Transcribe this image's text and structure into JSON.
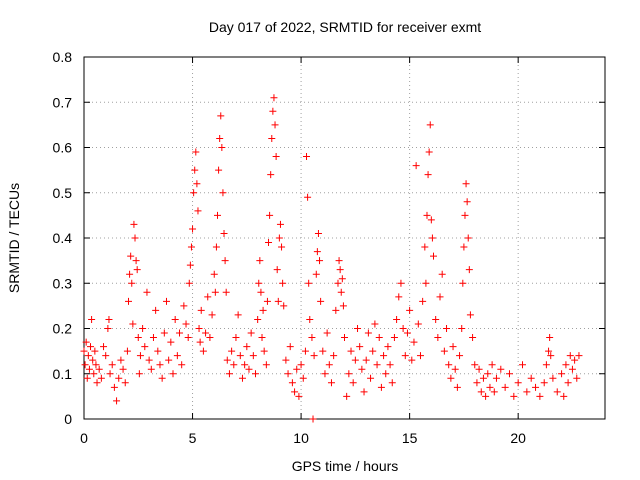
{
  "chart_data": {
    "type": "scatter",
    "title": "Day 017 of 2022, SRMTID for receiver exmt",
    "xlabel": "GPS time / hours",
    "ylabel": "SRMTID / TECUs",
    "xlim": [
      0,
      24
    ],
    "ylim": [
      0,
      0.8
    ],
    "xticks": [
      0,
      5,
      10,
      15,
      20
    ],
    "xtick_labels": [
      "0",
      "5",
      "10",
      "15",
      "20"
    ],
    "yticks": [
      0,
      0.1,
      0.2,
      0.3,
      0.4,
      0.5,
      0.6,
      0.7,
      0.8
    ],
    "ytick_labels": [
      "0",
      "0.1",
      "0.2",
      "0.3",
      "0.4",
      "0.5",
      "0.6",
      "0.7",
      "0.8"
    ],
    "grid": true,
    "marker": "+",
    "series_color": "#ff0000",
    "series": [
      {
        "name": "SRMTID",
        "points": [
          [
            0.0,
            0.15
          ],
          [
            0.05,
            0.12
          ],
          [
            0.1,
            0.17
          ],
          [
            0.15,
            0.09
          ],
          [
            0.2,
            0.14
          ],
          [
            0.25,
            0.11
          ],
          [
            0.3,
            0.16
          ],
          [
            0.35,
            0.22
          ],
          [
            0.4,
            0.13
          ],
          [
            0.45,
            0.1
          ],
          [
            0.5,
            0.15
          ],
          [
            0.55,
            0.12
          ],
          [
            0.6,
            0.08
          ],
          [
            0.7,
            0.11
          ],
          [
            0.8,
            0.09
          ],
          [
            0.9,
            0.16
          ],
          [
            1.0,
            0.14
          ],
          [
            1.1,
            0.2
          ],
          [
            1.15,
            0.22
          ],
          [
            1.2,
            0.1
          ],
          [
            1.3,
            0.12
          ],
          [
            1.4,
            0.07
          ],
          [
            1.5,
            0.04
          ],
          [
            1.6,
            0.09
          ],
          [
            1.7,
            0.13
          ],
          [
            1.8,
            0.11
          ],
          [
            1.9,
            0.08
          ],
          [
            2.0,
            0.15
          ],
          [
            2.05,
            0.26
          ],
          [
            2.1,
            0.32
          ],
          [
            2.15,
            0.36
          ],
          [
            2.2,
            0.3
          ],
          [
            2.25,
            0.21
          ],
          [
            2.3,
            0.43
          ],
          [
            2.35,
            0.4
          ],
          [
            2.4,
            0.35
          ],
          [
            2.45,
            0.33
          ],
          [
            2.5,
            0.18
          ],
          [
            2.55,
            0.1
          ],
          [
            2.6,
            0.14
          ],
          [
            2.7,
            0.2
          ],
          [
            2.8,
            0.16
          ],
          [
            2.9,
            0.28
          ],
          [
            3.0,
            0.13
          ],
          [
            3.1,
            0.11
          ],
          [
            3.2,
            0.18
          ],
          [
            3.3,
            0.24
          ],
          [
            3.4,
            0.15
          ],
          [
            3.5,
            0.12
          ],
          [
            3.6,
            0.09
          ],
          [
            3.7,
            0.19
          ],
          [
            3.8,
            0.26
          ],
          [
            3.9,
            0.13
          ],
          [
            4.0,
            0.17
          ],
          [
            4.1,
            0.1
          ],
          [
            4.2,
            0.22
          ],
          [
            4.3,
            0.14
          ],
          [
            4.4,
            0.19
          ],
          [
            4.5,
            0.12
          ],
          [
            4.6,
            0.25
          ],
          [
            4.7,
            0.21
          ],
          [
            4.8,
            0.18
          ],
          [
            4.85,
            0.3
          ],
          [
            4.9,
            0.34
          ],
          [
            4.95,
            0.38
          ],
          [
            5.0,
            0.42
          ],
          [
            5.05,
            0.5
          ],
          [
            5.1,
            0.55
          ],
          [
            5.15,
            0.59
          ],
          [
            5.2,
            0.52
          ],
          [
            5.25,
            0.46
          ],
          [
            5.3,
            0.2
          ],
          [
            5.35,
            0.17
          ],
          [
            5.4,
            0.24
          ],
          [
            5.5,
            0.15
          ],
          [
            5.6,
            0.19
          ],
          [
            5.7,
            0.27
          ],
          [
            5.8,
            0.18
          ],
          [
            5.9,
            0.23
          ],
          [
            6.0,
            0.32
          ],
          [
            6.05,
            0.28
          ],
          [
            6.1,
            0.38
          ],
          [
            6.15,
            0.45
          ],
          [
            6.2,
            0.55
          ],
          [
            6.25,
            0.62
          ],
          [
            6.3,
            0.67
          ],
          [
            6.35,
            0.6
          ],
          [
            6.4,
            0.5
          ],
          [
            6.45,
            0.41
          ],
          [
            6.5,
            0.35
          ],
          [
            6.55,
            0.28
          ],
          [
            6.6,
            0.13
          ],
          [
            6.7,
            0.1
          ],
          [
            6.8,
            0.15
          ],
          [
            6.9,
            0.12
          ],
          [
            7.0,
            0.18
          ],
          [
            7.1,
            0.23
          ],
          [
            7.2,
            0.14
          ],
          [
            7.3,
            0.09
          ],
          [
            7.4,
            0.12
          ],
          [
            7.5,
            0.16
          ],
          [
            7.6,
            0.11
          ],
          [
            7.7,
            0.19
          ],
          [
            7.8,
            0.14
          ],
          [
            7.9,
            0.1
          ],
          [
            8.0,
            0.22
          ],
          [
            8.05,
            0.3
          ],
          [
            8.1,
            0.35
          ],
          [
            8.15,
            0.28
          ],
          [
            8.2,
            0.18
          ],
          [
            8.25,
            0.24
          ],
          [
            8.3,
            0.15
          ],
          [
            8.4,
            0.12
          ],
          [
            8.45,
            0.26
          ],
          [
            8.5,
            0.39
          ],
          [
            8.55,
            0.45
          ],
          [
            8.6,
            0.54
          ],
          [
            8.65,
            0.62
          ],
          [
            8.7,
            0.68
          ],
          [
            8.75,
            0.71
          ],
          [
            8.8,
            0.65
          ],
          [
            8.85,
            0.58
          ],
          [
            8.9,
            0.33
          ],
          [
            8.95,
            0.26
          ],
          [
            9.0,
            0.4
          ],
          [
            9.05,
            0.43
          ],
          [
            9.1,
            0.38
          ],
          [
            9.15,
            0.3
          ],
          [
            9.2,
            0.25
          ],
          [
            9.3,
            0.13
          ],
          [
            9.4,
            0.1
          ],
          [
            9.5,
            0.16
          ],
          [
            9.6,
            0.08
          ],
          [
            9.7,
            0.06
          ],
          [
            9.8,
            0.11
          ],
          [
            9.9,
            0.05
          ],
          [
            10.0,
            0.12
          ],
          [
            10.1,
            0.09
          ],
          [
            10.2,
            0.15
          ],
          [
            10.25,
            0.58
          ],
          [
            10.3,
            0.49
          ],
          [
            10.35,
            0.3
          ],
          [
            10.4,
            0.22
          ],
          [
            10.5,
            0.18
          ],
          [
            10.55,
            0.0
          ],
          [
            10.6,
            0.14
          ],
          [
            10.7,
            0.32
          ],
          [
            10.75,
            0.37
          ],
          [
            10.8,
            0.41
          ],
          [
            10.85,
            0.35
          ],
          [
            10.9,
            0.26
          ],
          [
            11.0,
            0.15
          ],
          [
            11.1,
            0.1
          ],
          [
            11.2,
            0.19
          ],
          [
            11.3,
            0.12
          ],
          [
            11.4,
            0.08
          ],
          [
            11.5,
            0.14
          ],
          [
            11.6,
            0.24
          ],
          [
            11.7,
            0.3
          ],
          [
            11.75,
            0.35
          ],
          [
            11.8,
            0.33
          ],
          [
            11.85,
            0.28
          ],
          [
            11.9,
            0.31
          ],
          [
            11.95,
            0.25
          ],
          [
            12.0,
            0.18
          ],
          [
            12.1,
            0.05
          ],
          [
            12.2,
            0.1
          ],
          [
            12.3,
            0.15
          ],
          [
            12.4,
            0.08
          ],
          [
            12.5,
            0.13
          ],
          [
            12.6,
            0.2
          ],
          [
            12.7,
            0.16
          ],
          [
            12.8,
            0.11
          ],
          [
            12.9,
            0.06
          ],
          [
            13.0,
            0.13
          ],
          [
            13.1,
            0.19
          ],
          [
            13.2,
            0.09
          ],
          [
            13.3,
            0.15
          ],
          [
            13.4,
            0.21
          ],
          [
            13.5,
            0.12
          ],
          [
            13.6,
            0.18
          ],
          [
            13.7,
            0.07
          ],
          [
            13.8,
            0.14
          ],
          [
            13.9,
            0.1
          ],
          [
            14.0,
            0.16
          ],
          [
            14.1,
            0.12
          ],
          [
            14.2,
            0.08
          ],
          [
            14.3,
            0.18
          ],
          [
            14.4,
            0.22
          ],
          [
            14.5,
            0.27
          ],
          [
            14.6,
            0.3
          ],
          [
            14.7,
            0.2
          ],
          [
            14.8,
            0.14
          ],
          [
            14.9,
            0.19
          ],
          [
            15.0,
            0.24
          ],
          [
            15.1,
            0.13
          ],
          [
            15.2,
            0.17
          ],
          [
            15.3,
            0.56
          ],
          [
            15.4,
            0.21
          ],
          [
            15.5,
            0.14
          ],
          [
            15.6,
            0.26
          ],
          [
            15.7,
            0.38
          ],
          [
            15.75,
            0.3
          ],
          [
            15.8,
            0.45
          ],
          [
            15.85,
            0.54
          ],
          [
            15.9,
            0.59
          ],
          [
            15.95,
            0.65
          ],
          [
            16.0,
            0.44
          ],
          [
            16.05,
            0.4
          ],
          [
            16.1,
            0.36
          ],
          [
            16.2,
            0.22
          ],
          [
            16.3,
            0.18
          ],
          [
            16.4,
            0.27
          ],
          [
            16.5,
            0.32
          ],
          [
            16.6,
            0.15
          ],
          [
            16.7,
            0.2
          ],
          [
            16.8,
            0.12
          ],
          [
            16.9,
            0.09
          ],
          [
            17.0,
            0.16
          ],
          [
            17.1,
            0.11
          ],
          [
            17.2,
            0.07
          ],
          [
            17.3,
            0.14
          ],
          [
            17.4,
            0.2
          ],
          [
            17.45,
            0.3
          ],
          [
            17.5,
            0.38
          ],
          [
            17.55,
            0.45
          ],
          [
            17.6,
            0.52
          ],
          [
            17.65,
            0.48
          ],
          [
            17.7,
            0.4
          ],
          [
            17.75,
            0.33
          ],
          [
            17.8,
            0.23
          ],
          [
            17.9,
            0.18
          ],
          [
            18.0,
            0.12
          ],
          [
            18.1,
            0.08
          ],
          [
            18.2,
            0.11
          ],
          [
            18.3,
            0.06
          ],
          [
            18.4,
            0.09
          ],
          [
            18.5,
            0.05
          ],
          [
            18.6,
            0.1
          ],
          [
            18.7,
            0.07
          ],
          [
            18.8,
            0.12
          ],
          [
            18.9,
            0.06
          ],
          [
            19.0,
            0.09
          ],
          [
            19.2,
            0.11
          ],
          [
            19.4,
            0.07
          ],
          [
            19.6,
            0.1
          ],
          [
            19.8,
            0.05
          ],
          [
            20.0,
            0.08
          ],
          [
            20.2,
            0.12
          ],
          [
            20.4,
            0.06
          ],
          [
            20.6,
            0.09
          ],
          [
            20.8,
            0.07
          ],
          [
            21.0,
            0.05
          ],
          [
            21.2,
            0.08
          ],
          [
            21.3,
            0.12
          ],
          [
            21.4,
            0.15
          ],
          [
            21.45,
            0.18
          ],
          [
            21.5,
            0.14
          ],
          [
            21.6,
            0.09
          ],
          [
            21.8,
            0.06
          ],
          [
            22.0,
            0.1
          ],
          [
            22.1,
            0.05
          ],
          [
            22.2,
            0.12
          ],
          [
            22.3,
            0.08
          ],
          [
            22.4,
            0.14
          ],
          [
            22.5,
            0.11
          ],
          [
            22.6,
            0.13
          ],
          [
            22.7,
            0.09
          ],
          [
            22.8,
            0.14
          ]
        ]
      }
    ]
  }
}
